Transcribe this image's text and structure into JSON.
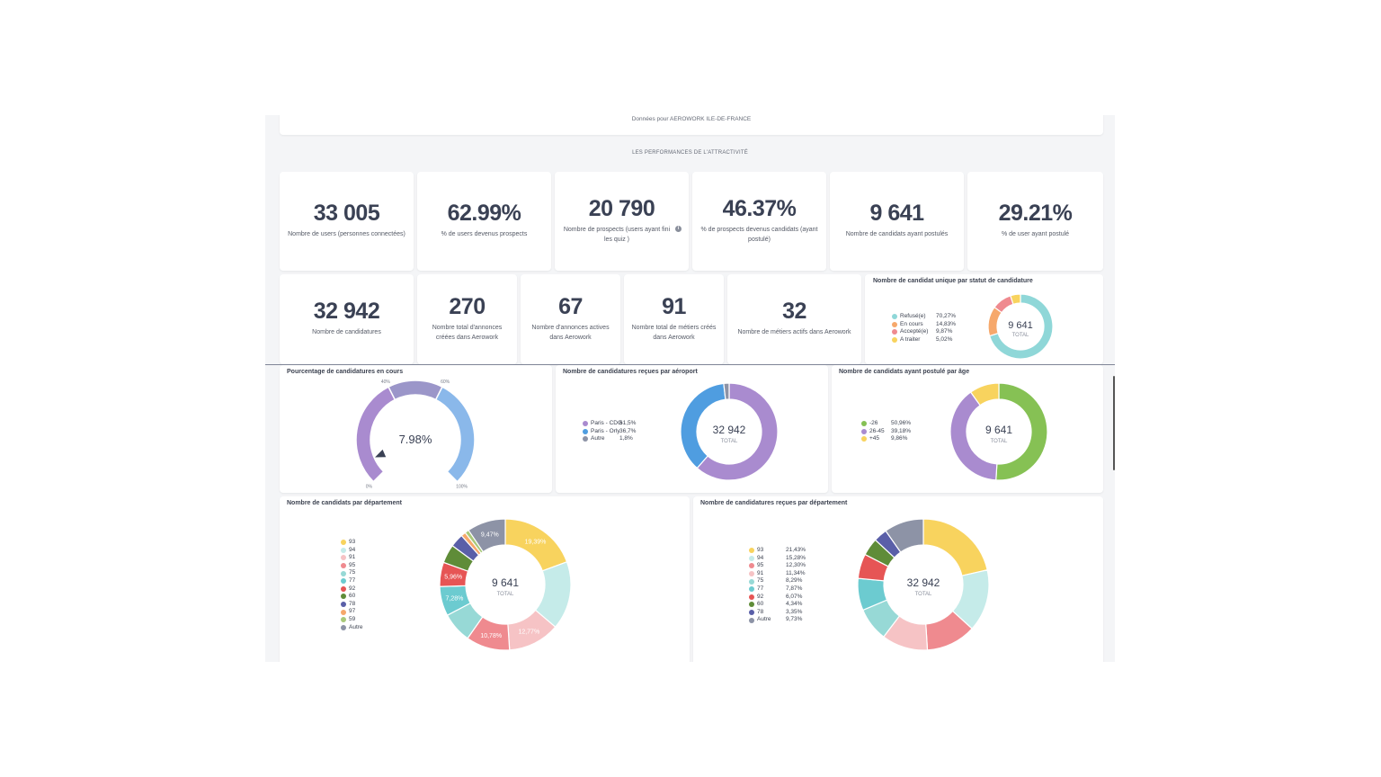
{
  "header_note": "Données pour AEROWORK ILE-DE-FRANCE",
  "section_title": "LES PERFORMANCES DE L'ATTRACTIVITÉ",
  "kpis_row1": [
    {
      "value": "33 005",
      "label": "Nombre de users (personnes connectées)"
    },
    {
      "value": "62.99%",
      "label": "% de users devenus prospects"
    },
    {
      "value": "20 790",
      "label": "Nombre de prospects (users ayant fini les quiz )"
    },
    {
      "value": "46.37%",
      "label": "% de prospects devenus candidats (ayant postulé)"
    },
    {
      "value": "9 641",
      "label": "Nombre de candidats ayant postulés"
    },
    {
      "value": "29.21%",
      "label": "% de user ayant postulé"
    }
  ],
  "kpis_row2": [
    {
      "value": "32 942",
      "label": "Nombre de candidatures"
    },
    {
      "value": "270",
      "label": "Nombre total d'annonces créées dans Aerowork"
    },
    {
      "value": "67",
      "label": "Nombre d'annonces actives dans Aerowork"
    },
    {
      "value": "91",
      "label": "Nombre total de métiers créés dans Aerowork"
    },
    {
      "value": "32",
      "label": "Nombre de métiers actifs dans Aerowork"
    }
  ],
  "info_icon": "info-icon",
  "chart_data": [
    {
      "type": "pie",
      "title": "Nombre de candidat unique par statut de candidature",
      "center_value": "9 641",
      "center_label": "TOTAL",
      "categories": [
        "Refusé(e)",
        "En cours",
        "Accepté(e)",
        "A traiter"
      ],
      "labels": [
        "70,27%",
        "14,83%",
        "9,87%",
        "5,02%"
      ],
      "values": [
        70.27,
        14.83,
        9.87,
        5.02
      ],
      "colors": [
        "#8fd7d8",
        "#f6a86b",
        "#ef8a8f",
        "#f8d35e"
      ]
    },
    {
      "type": "gauge",
      "title": "Pourcentage de candidatures en cours",
      "value_label": "7.98%",
      "value": 7.98,
      "tick_labels": [
        "0%",
        "40%",
        "60%",
        "100%"
      ],
      "ranges": [
        {
          "from": 0,
          "to": 40,
          "color": "#a98bcf"
        },
        {
          "from": 40,
          "to": 60,
          "color": "#9b96c9"
        },
        {
          "from": 60,
          "to": 100,
          "color": "#8ab8ea"
        }
      ]
    },
    {
      "type": "pie",
      "title": "Nombre de candidatures reçues par aéroport",
      "center_value": "32 942",
      "center_label": "TOTAL",
      "categories": [
        "Paris - CDG",
        "Paris - Orly",
        "Autre"
      ],
      "labels": [
        "61,5%",
        "36,7%",
        "1,8%"
      ],
      "values": [
        61.5,
        36.7,
        1.8
      ],
      "colors": [
        "#a98bcf",
        "#4f9de0",
        "#8d93a6"
      ]
    },
    {
      "type": "pie",
      "title": "Nombre de candidats ayant postulé par âge",
      "center_value": "9 641",
      "center_label": "TOTAL",
      "categories": [
        "-26",
        "26-45",
        "+45"
      ],
      "labels": [
        "50,96%",
        "39,18%",
        "9,86%"
      ],
      "values": [
        50.96,
        39.18,
        9.86
      ],
      "colors": [
        "#86c154",
        "#a98bcf",
        "#f8d35e"
      ]
    },
    {
      "type": "pie",
      "title": "Nombre de candidats par département",
      "center_value": "9 641",
      "center_label": "TOTAL",
      "categories": [
        "93",
        "94",
        "91",
        "95",
        "75",
        "77",
        "92",
        "60",
        "78",
        "97",
        "59",
        "Autre"
      ],
      "values": [
        19.39,
        16.8,
        12.77,
        10.78,
        7.5,
        7.28,
        5.96,
        4.6,
        3.3,
        1.15,
        1.0,
        9.47
      ],
      "slice_labels": [
        "19,39%",
        "",
        "12,77%",
        "10,78%",
        "",
        "7,28%",
        "5,96%",
        "",
        "",
        "",
        "",
        "9,47%"
      ],
      "colors": [
        "#f8d35e",
        "#c5ebe9",
        "#f6c3c5",
        "#ef8a8f",
        "#97d9d6",
        "#6ccbd0",
        "#e65555",
        "#5f8c38",
        "#5a5fa8",
        "#f6a86b",
        "#a9c97a",
        "#8d93a6"
      ]
    },
    {
      "type": "pie",
      "title": "Nombre de candidatures reçues par département",
      "center_value": "32 942",
      "center_label": "TOTAL",
      "categories": [
        "93",
        "94",
        "95",
        "91",
        "75",
        "77",
        "92",
        "60",
        "78",
        "Autre"
      ],
      "labels": [
        "21,43%",
        "15,28%",
        "12,30%",
        "11,34%",
        "8,29%",
        "7,87%",
        "6,07%",
        "4,34%",
        "3,35%",
        "9,73%"
      ],
      "values": [
        21.43,
        15.28,
        12.3,
        11.34,
        8.29,
        7.87,
        6.07,
        4.34,
        3.35,
        9.73
      ],
      "colors": [
        "#f8d35e",
        "#c5ebe9",
        "#ef8a8f",
        "#f6c3c5",
        "#97d9d6",
        "#6ccbd0",
        "#e65555",
        "#5f8c38",
        "#5a5fa8",
        "#8d93a6"
      ]
    }
  ]
}
